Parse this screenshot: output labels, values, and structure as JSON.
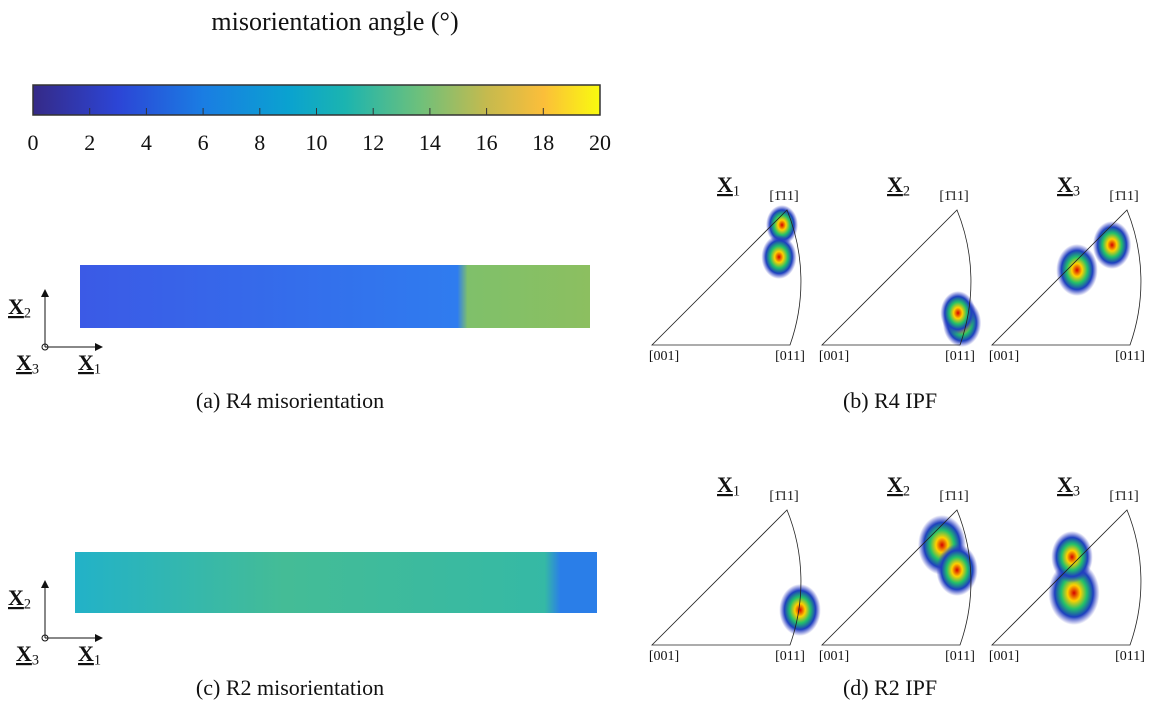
{
  "colorbar": {
    "title": "misorientation angle (°)",
    "lim": [
      0,
      20
    ],
    "ticks": [
      0,
      2,
      4,
      6,
      8,
      10,
      12,
      14,
      16,
      18,
      20
    ]
  },
  "panels": [
    {
      "caption": "(a) R4 misorientation",
      "axes": [
        {
          "base": "X",
          "index": "1"
        },
        {
          "base": "X",
          "index": "2"
        },
        {
          "base": "X",
          "index": "3"
        }
      ]
    },
    {
      "caption": "(b) R4 IPF",
      "poles": [
        {
          "base": "X",
          "index": "1"
        },
        {
          "base": "X",
          "index": "2"
        },
        {
          "base": "X",
          "index": "3"
        }
      ],
      "corners": [
        "[001]",
        "[011]",
        "[1̄11]"
      ]
    },
    {
      "caption": "(c) R2 misorientation",
      "axes": [
        {
          "base": "X",
          "index": "1"
        },
        {
          "base": "X",
          "index": "2"
        },
        {
          "base": "X",
          "index": "3"
        }
      ]
    },
    {
      "caption": "(d) R2 IPF",
      "poles": [
        {
          "base": "X",
          "index": "1"
        },
        {
          "base": "X",
          "index": "2"
        },
        {
          "base": "X",
          "index": "3"
        }
      ],
      "corners": [
        "[001]",
        "[011]",
        "[1̄11]"
      ]
    }
  ]
}
